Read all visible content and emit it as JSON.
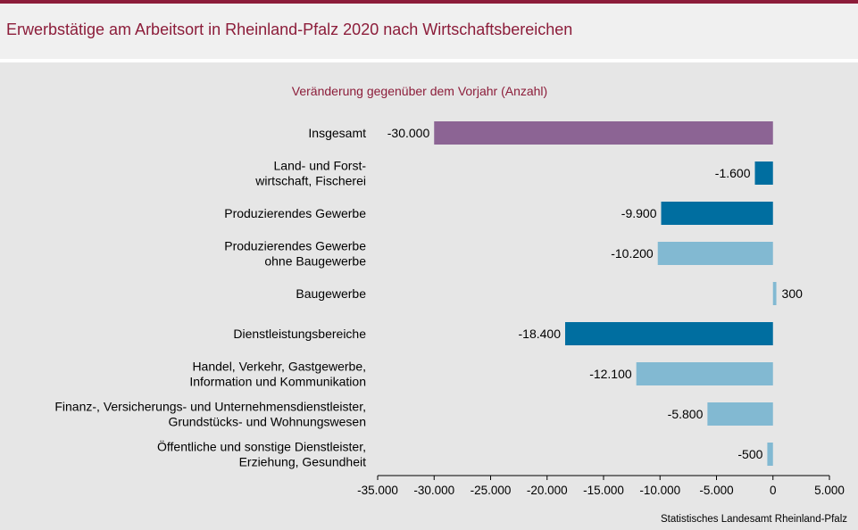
{
  "header": {
    "title": "Erwerbstätige am Arbeitsort in Rheinland-Pfalz 2020 nach Wirtschaftsbereichen"
  },
  "source": "Statistisches Landesamt Rheinland-Pfalz",
  "colors": {
    "accent": "#8c1d3a",
    "total": "#8c6494",
    "dark": "#006ea0",
    "light": "#82b9d2"
  },
  "chart_data": {
    "type": "bar",
    "orientation": "horizontal",
    "title": "Veränderung gegenüber dem Vorjahr (Anzahl)",
    "xlim": [
      -35000,
      5000
    ],
    "ticks": [
      {
        "value": -35000,
        "label": "-35.000"
      },
      {
        "value": -30000,
        "label": "-30.000"
      },
      {
        "value": -25000,
        "label": "-25.000"
      },
      {
        "value": -20000,
        "label": "-20.000"
      },
      {
        "value": -15000,
        "label": "-15.000"
      },
      {
        "value": -10000,
        "label": "-10.000"
      },
      {
        "value": -5000,
        "label": "-5.000"
      },
      {
        "value": 0,
        "label": "0"
      },
      {
        "value": 5000,
        "label": "5.000"
      }
    ],
    "grid": false,
    "bars": [
      {
        "category": [
          "Insgesamt"
        ],
        "value": -30000,
        "label": "-30.000",
        "color": "total"
      },
      {
        "category": [
          "Land- und Forst-",
          "wirtschaft, Fischerei"
        ],
        "value": -1600,
        "label": "-1.600",
        "color": "dark"
      },
      {
        "category": [
          "Produzierendes Gewerbe"
        ],
        "value": -9900,
        "label": "-9.900",
        "color": "dark"
      },
      {
        "category": [
          "Produzierendes Gewerbe",
          "ohne Baugewerbe"
        ],
        "value": -10200,
        "label": "-10.200",
        "color": "light"
      },
      {
        "category": [
          "Baugewerbe"
        ],
        "value": 300,
        "label": "300",
        "color": "light"
      },
      {
        "category": [
          "Dienstleistungsbereiche"
        ],
        "value": -18400,
        "label": "-18.400",
        "color": "dark"
      },
      {
        "category": [
          "Handel, Verkehr, Gastgewerbe,",
          "Information und Kommunikation"
        ],
        "value": -12100,
        "label": "-12.100",
        "color": "light"
      },
      {
        "category": [
          "Finanz-, Versicherungs- und Unternehmensdienstleister,",
          "Grundstücks- und Wohnungswesen"
        ],
        "value": -5800,
        "label": "-5.800",
        "color": "light"
      },
      {
        "category": [
          "Öffentliche und sonstige Dienstleister,",
          "Erziehung, Gesundheit"
        ],
        "value": -500,
        "label": "-500",
        "color": "light"
      }
    ]
  }
}
